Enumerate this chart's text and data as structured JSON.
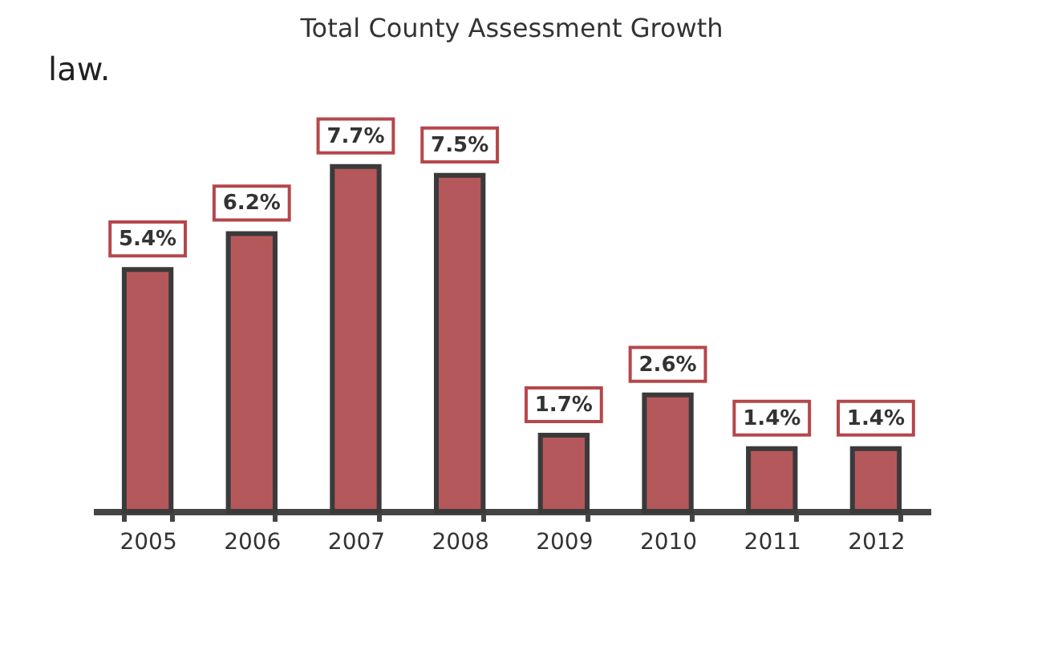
{
  "chart_data": {
    "type": "bar",
    "title": "Total County Assessment Growth",
    "categories": [
      "2005",
      "2006",
      "2007",
      "2008",
      "2009",
      "2010",
      "2011",
      "2012"
    ],
    "values": [
      5.4,
      6.2,
      7.7,
      7.5,
      1.7,
      2.6,
      1.4,
      1.4
    ],
    "value_labels": [
      "5.4%",
      "6.2%",
      "7.7%",
      "7.5%",
      "1.7%",
      "2.6%",
      "1.4%",
      "1.4%"
    ],
    "color": "#b5585b",
    "annotations": [
      "law."
    ]
  }
}
